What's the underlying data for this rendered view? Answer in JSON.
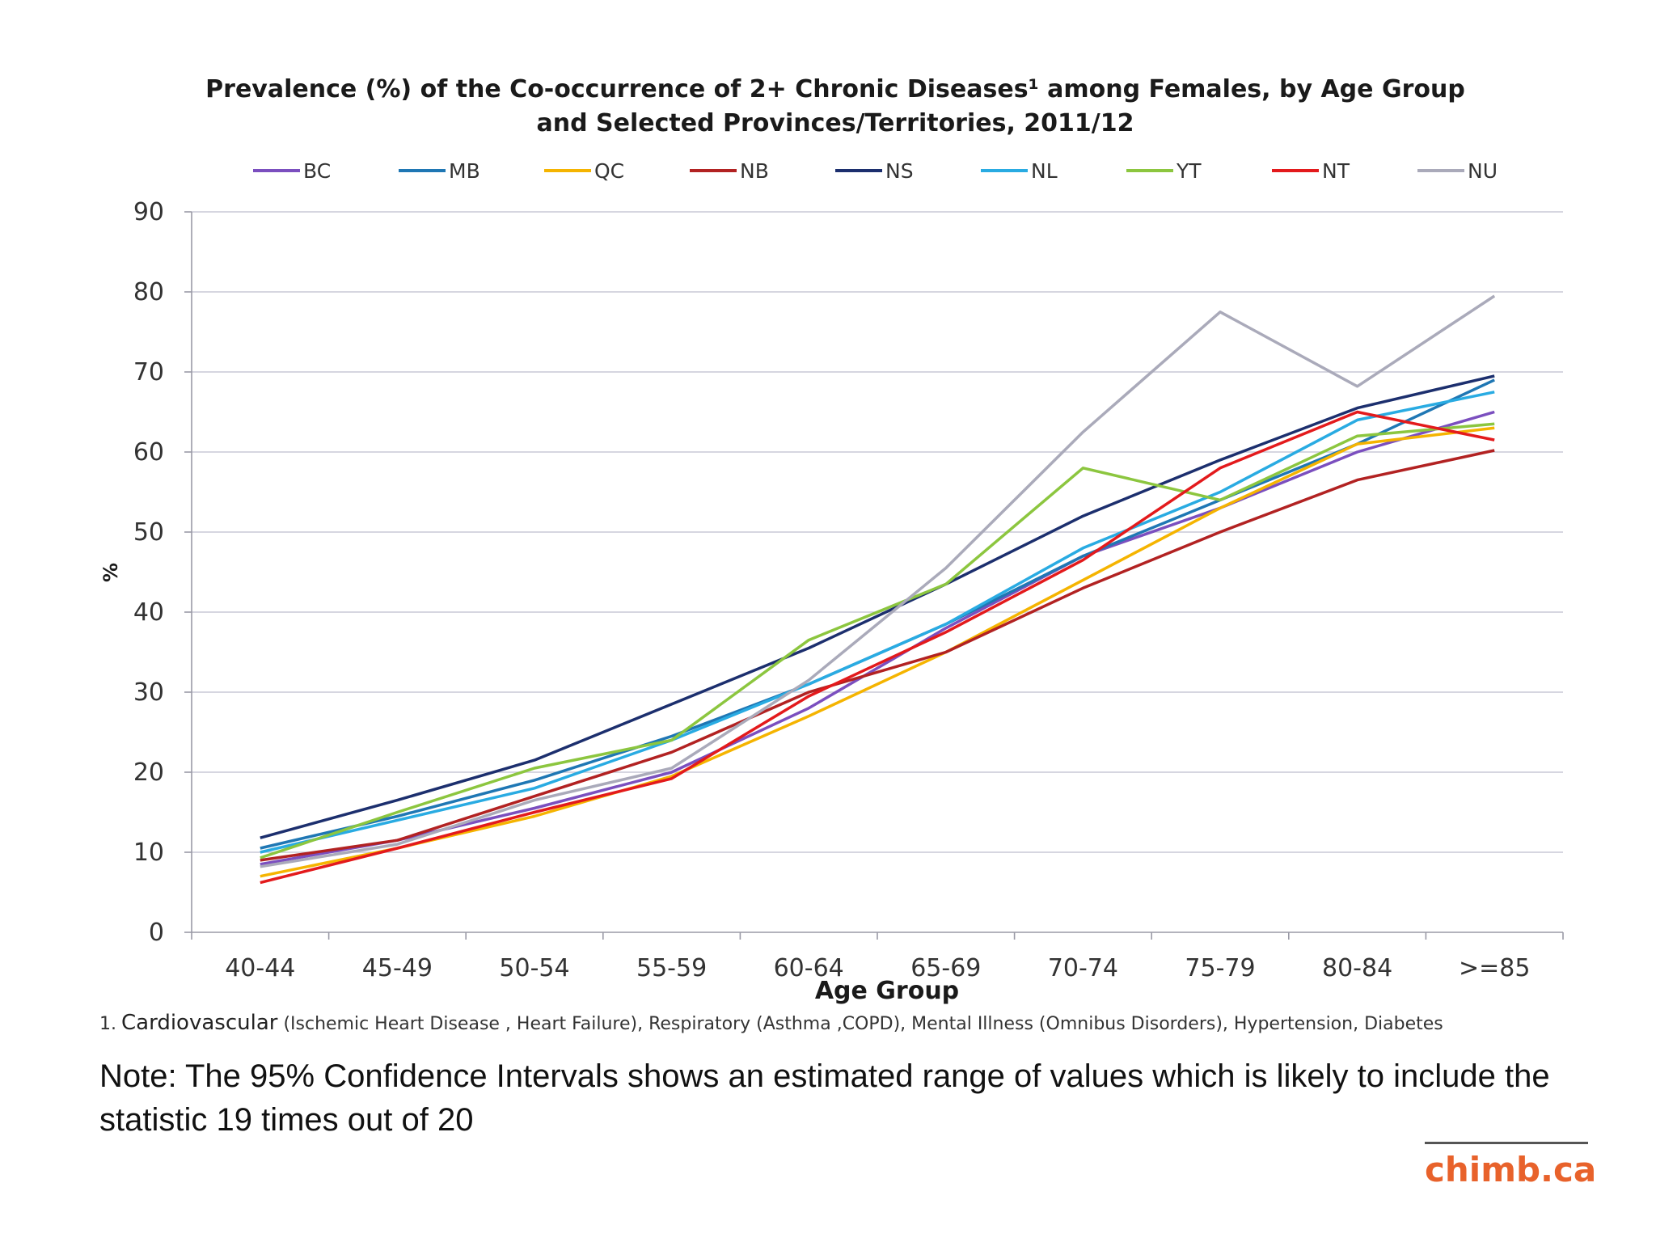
{
  "chart_data": {
    "type": "line",
    "title_line1": "Prevalence (%) of the Co-occurrence of 2+ Chronic Diseases¹ among Females, by Age Group",
    "title_line2": "and Selected Provinces/Territories, 2011/12",
    "xlabel": "Age Group",
    "ylabel": "%",
    "ylim": [
      0,
      90
    ],
    "yticks": [
      0,
      10,
      20,
      30,
      40,
      50,
      60,
      70,
      80,
      90
    ],
    "grid": true,
    "legend_position": "top",
    "categories": [
      "40-44",
      "45-49",
      "50-54",
      "55-59",
      "60-64",
      "65-69",
      "70-74",
      "75-79",
      "80-84",
      ">=85"
    ],
    "series": [
      {
        "name": "BC",
        "color": "#7b4fbf",
        "values": [
          8.5,
          11.5,
          15.5,
          20,
          28,
          38,
          47,
          53,
          60,
          65
        ]
      },
      {
        "name": "MB",
        "color": "#1f77b4",
        "values": [
          10.5,
          14.5,
          19,
          24.5,
          31,
          38.5,
          47,
          54,
          61,
          69
        ]
      },
      {
        "name": "QC",
        "color": "#f5b400",
        "values": [
          7,
          10.5,
          14.5,
          19.5,
          27,
          35,
          44,
          53,
          61,
          63
        ]
      },
      {
        "name": "NB",
        "color": "#b22222",
        "values": [
          9,
          11.5,
          17,
          22.5,
          30,
          35,
          43,
          50,
          56.5,
          60.2
        ]
      },
      {
        "name": "NS",
        "color": "#1c2f6e",
        "values": [
          11.8,
          16.5,
          21.5,
          28.5,
          35.5,
          43.5,
          52,
          59,
          65.5,
          69.5
        ]
      },
      {
        "name": "NL",
        "color": "#29abe2",
        "values": [
          10,
          14,
          18,
          24,
          31,
          38.5,
          48,
          55,
          64,
          67.5
        ]
      },
      {
        "name": "YT",
        "color": "#8cc63f",
        "values": [
          9.3,
          15,
          20.5,
          24,
          36.5,
          43.5,
          58,
          54,
          62,
          63.5
        ]
      },
      {
        "name": "NT",
        "color": "#e31a1c",
        "values": [
          6.2,
          10.5,
          15,
          19.2,
          29.5,
          37.5,
          46.5,
          58,
          65,
          61.5
        ]
      },
      {
        "name": "NU",
        "color": "#aaaaba",
        "values": [
          8.2,
          11,
          16.5,
          20.5,
          31.5,
          45.5,
          62.5,
          77.5,
          68.2,
          79.5
        ]
      }
    ],
    "footnote_marker": "1.",
    "footnote_lead": "Cardiovascular",
    "footnote_rest": " (Ischemic Heart Disease , Heart Failure), Respiratory (Asthma ,COPD), Mental Illness (Omnibus Disorders), Hypertension,  Diabetes"
  },
  "note": "Note: The 95% Confidence Intervals shows an estimated range of values which is likely to include the statistic 19 times out of 20",
  "brand": "chimb.ca"
}
